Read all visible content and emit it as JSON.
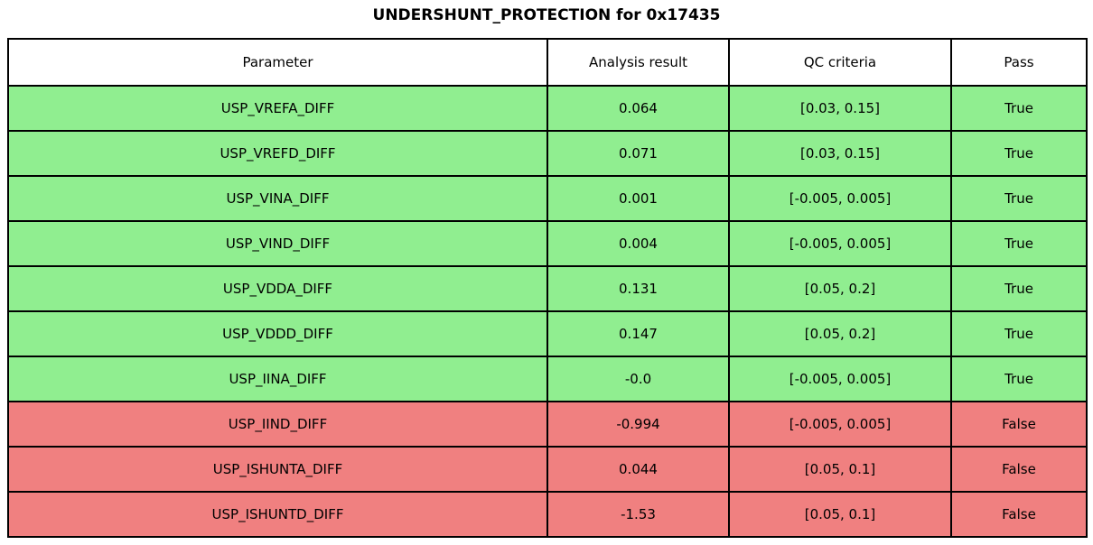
{
  "chart_data": {
    "type": "table",
    "title": "UNDERSHUNT_PROTECTION for 0x17435",
    "columns": [
      "Parameter",
      "Analysis result",
      "QC criteria",
      "Pass"
    ],
    "rows": [
      {
        "parameter": "USP_VREFA_DIFF",
        "result": "0.064",
        "criteria": "[0.03, 0.15]",
        "pass": "True",
        "status": "pass"
      },
      {
        "parameter": "USP_VREFD_DIFF",
        "result": "0.071",
        "criteria": "[0.03, 0.15]",
        "pass": "True",
        "status": "pass"
      },
      {
        "parameter": "USP_VINA_DIFF",
        "result": "0.001",
        "criteria": "[-0.005, 0.005]",
        "pass": "True",
        "status": "pass"
      },
      {
        "parameter": "USP_VIND_DIFF",
        "result": "0.004",
        "criteria": "[-0.005, 0.005]",
        "pass": "True",
        "status": "pass"
      },
      {
        "parameter": "USP_VDDA_DIFF",
        "result": "0.131",
        "criteria": "[0.05, 0.2]",
        "pass": "True",
        "status": "pass"
      },
      {
        "parameter": "USP_VDDD_DIFF",
        "result": "0.147",
        "criteria": "[0.05, 0.2]",
        "pass": "True",
        "status": "pass"
      },
      {
        "parameter": "USP_IINA_DIFF",
        "result": "-0.0",
        "criteria": "[-0.005, 0.005]",
        "pass": "True",
        "status": "pass"
      },
      {
        "parameter": "USP_IIND_DIFF",
        "result": "-0.994",
        "criteria": "[-0.005, 0.005]",
        "pass": "False",
        "status": "fail"
      },
      {
        "parameter": "USP_ISHUNTA_DIFF",
        "result": "0.044",
        "criteria": "[0.05, 0.1]",
        "pass": "False",
        "status": "fail"
      },
      {
        "parameter": "USP_ISHUNTD_DIFF",
        "result": "-1.53",
        "criteria": "[0.05, 0.1]",
        "pass": "False",
        "status": "fail"
      }
    ],
    "layout": {
      "header_background": "#ffffff",
      "grid": "on",
      "legend": "none"
    }
  },
  "colors": {
    "pass_row": "#90EE90",
    "fail_row": "#F08080",
    "border": "#000000",
    "text": "#000000",
    "background": "#ffffff"
  }
}
